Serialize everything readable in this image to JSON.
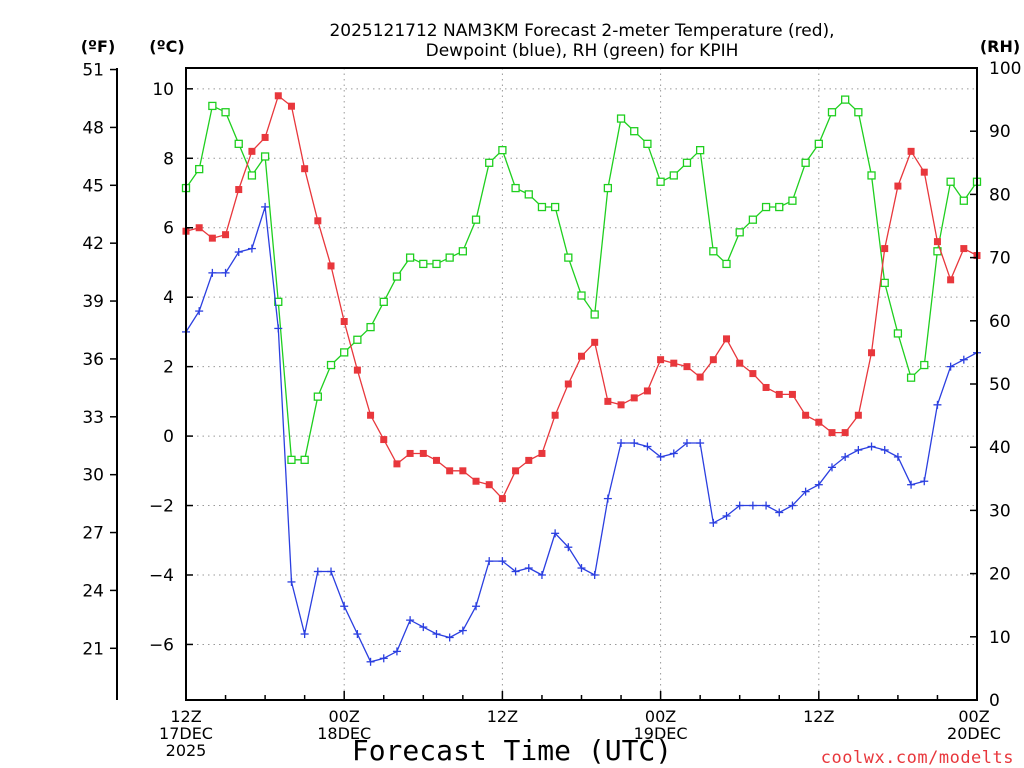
{
  "chart_data": {
    "type": "line",
    "title_lines": [
      "2025121712 NAM3KM Forecast 2-meter Temperature (red),",
      "Dewpoint (blue), RH (green) for KPIH"
    ],
    "xlabel": "Forecast Time (UTC)",
    "credit": "coolwx.com/modelts",
    "left_outer_axis_label": "(ºF)",
    "left_inner_axis_label": "(ºC)",
    "right_axis_label": "(RH)",
    "x_hours_range": [
      0,
      60
    ],
    "x_tick_hours": [
      0,
      12,
      24,
      36,
      48,
      60
    ],
    "x_tick_labels": [
      [
        "12Z",
        "17DEC",
        "2025"
      ],
      [
        "00Z",
        "18DEC"
      ],
      [
        "12Z"
      ],
      [
        "00Z",
        "19DEC"
      ],
      [
        "12Z"
      ],
      [
        "00Z",
        "20DEC"
      ]
    ],
    "ylim_c": [
      -7.6,
      10.6
    ],
    "yticks_c": [
      -6,
      -4,
      -2,
      0,
      2,
      4,
      6,
      8,
      10
    ],
    "yticks_f": [
      21,
      24,
      27,
      30,
      33,
      36,
      39,
      42,
      45,
      48,
      51
    ],
    "ylim_rh": [
      0,
      100
    ],
    "yticks_rh": [
      0,
      10,
      20,
      30,
      40,
      50,
      60,
      70,
      80,
      90,
      100
    ],
    "grid": true,
    "colors": {
      "temperature": "#e8373c",
      "dewpoint": "#2b3fe0",
      "rh": "#1fcf1f"
    },
    "x": [
      0,
      1,
      2,
      3,
      4,
      5,
      6,
      7,
      8,
      9,
      10,
      11,
      12,
      13,
      14,
      15,
      16,
      17,
      18,
      19,
      20,
      21,
      22,
      23,
      24,
      25,
      26,
      27,
      28,
      29,
      30,
      31,
      32,
      33,
      34,
      35,
      36,
      37,
      38,
      39,
      40,
      41,
      42,
      43,
      44,
      45,
      46,
      47,
      48,
      49,
      50,
      51,
      52,
      53,
      54,
      55,
      56,
      57,
      58,
      59,
      60
    ],
    "series": [
      {
        "name": "Temperature",
        "marker": "filled-square",
        "values": [
          5.9,
          6.0,
          5.7,
          5.8,
          7.1,
          8.2,
          8.6,
          9.8,
          9.5,
          7.7,
          6.2,
          4.9,
          3.3,
          1.9,
          0.6,
          -0.1,
          -0.8,
          -0.5,
          -0.5,
          -0.7,
          -1.0,
          -1.0,
          -1.3,
          -1.4,
          -1.8,
          -1.0,
          -0.7,
          -0.5,
          0.6,
          1.5,
          2.3,
          2.7,
          1.0,
          0.9,
          1.1,
          1.3,
          2.2,
          2.1,
          2.0,
          1.7,
          2.2,
          2.8,
          2.1,
          1.8,
          1.4,
          1.2,
          1.2,
          0.6,
          0.4,
          0.1,
          0.1,
          0.6,
          2.4,
          5.4,
          7.2,
          8.2,
          7.6,
          5.6,
          4.5,
          5.4,
          5.2
        ]
      },
      {
        "name": "Dewpoint",
        "marker": "plus",
        "values": [
          3.0,
          3.6,
          4.7,
          4.7,
          5.3,
          5.4,
          6.6,
          3.1,
          -4.2,
          -5.7,
          -3.9,
          -3.9,
          -4.9,
          -5.7,
          -6.5,
          -6.4,
          -6.2,
          -5.3,
          -5.5,
          -5.7,
          -5.8,
          -5.6,
          -4.9,
          -3.6,
          -3.6,
          -3.9,
          -3.8,
          -4.0,
          -2.8,
          -3.2,
          -3.8,
          -4.0,
          -1.8,
          -0.2,
          -0.2,
          -0.3,
          -0.6,
          -0.5,
          -0.2,
          -0.2,
          -2.5,
          -2.3,
          -2.0,
          -2.0,
          -2.0,
          -2.2,
          -2.0,
          -1.6,
          -1.4,
          -0.9,
          -0.6,
          -0.4,
          -0.3,
          -0.4,
          -0.6,
          -1.4,
          -1.3,
          0.9,
          2.0,
          2.2,
          2.4
        ]
      },
      {
        "name": "RH",
        "marker": "open-square",
        "axis": "right",
        "values": [
          81,
          84,
          94,
          93,
          88,
          83,
          86,
          63,
          38,
          38,
          48,
          53,
          55,
          57,
          59,
          63,
          67,
          70,
          69,
          69,
          70,
          71,
          76,
          85,
          87,
          81,
          80,
          78,
          78,
          70,
          64,
          61,
          81,
          92,
          90,
          88,
          82,
          83,
          85,
          87,
          71,
          69,
          74,
          76,
          78,
          78,
          79,
          85,
          88,
          93,
          95,
          93,
          83,
          66,
          58,
          51,
          53,
          71,
          82,
          79,
          82
        ]
      }
    ]
  }
}
